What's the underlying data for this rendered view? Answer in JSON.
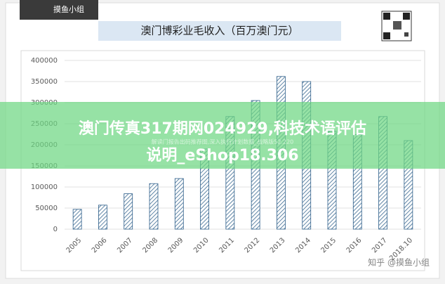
{
  "logo": "摸鱼小组",
  "chart_data": {
    "type": "bar",
    "title": "澳门博彩业毛收入（百万澳门元）",
    "categories": [
      "2005",
      "2006",
      "2007",
      "2008",
      "2009",
      "2010",
      "2011",
      "2012",
      "2013",
      "2014",
      "2015",
      "2016",
      "2017",
      "2018.10"
    ],
    "values": [
      47000,
      57000,
      84000,
      108000,
      120000,
      190000,
      267000,
      305000,
      362000,
      350000,
      232000,
      224000,
      267000,
      210000
    ],
    "color": "#2e5f8a",
    "ylim": [
      0,
      400000
    ],
    "yticks": [
      0,
      50000,
      100000,
      150000,
      200000,
      250000,
      300000,
      350000,
      400000
    ],
    "grid": true
  },
  "overlay": {
    "line1": "澳门传真317期网024929,科技术语评估",
    "line2": "说明_eShop18.306",
    "subtext": "解读门报告出码推荐图,深入执行计划数据_战略版52.220"
  },
  "watermark": "知乎 @摸鱼小组"
}
